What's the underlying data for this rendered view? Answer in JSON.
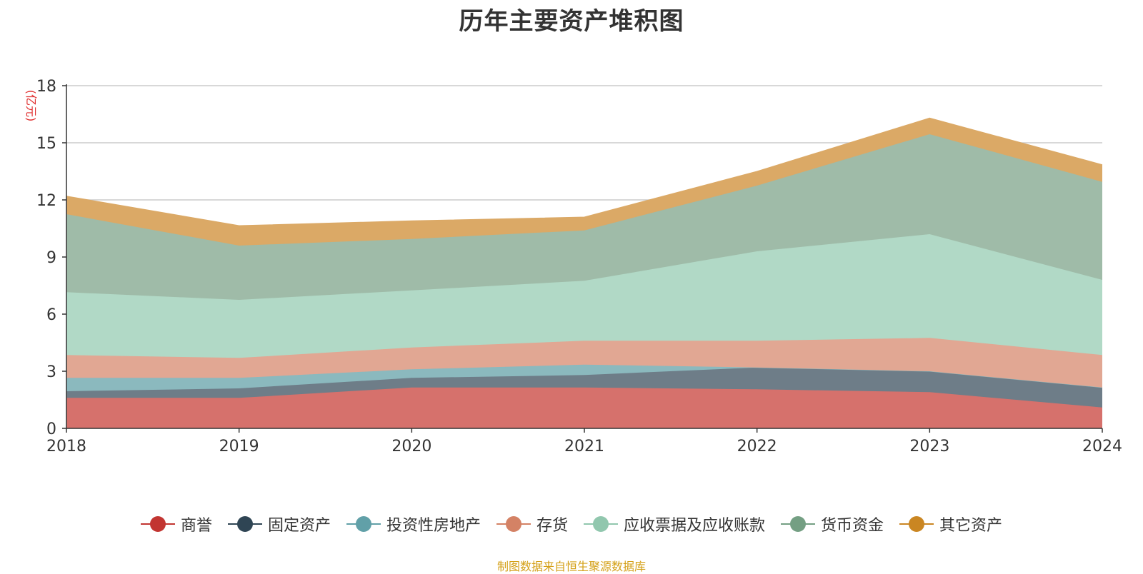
{
  "title": "历年主要资产堆积图",
  "source_note": "制图数据来自恒生聚源数据库",
  "chart_data": {
    "type": "area",
    "stacked": true,
    "title": "历年主要资产堆积图",
    "ylabel": "(亿元)",
    "x": [
      "2018",
      "2019",
      "2020",
      "2021",
      "2022",
      "2023",
      "2024"
    ],
    "ylim": [
      0,
      18
    ],
    "yticks": [
      0,
      3,
      6,
      9,
      12,
      15,
      18
    ],
    "grid": true,
    "legend_position": "bottom",
    "series": [
      {
        "name": "商誉",
        "color": "#c23531",
        "fill": "#d6716c",
        "values": [
          1.6,
          1.6,
          2.15,
          2.15,
          2.05,
          1.9,
          1.1
        ]
      },
      {
        "name": "固定资产",
        "color": "#2f4554",
        "fill": "#6e7d88",
        "values": [
          0.35,
          0.5,
          0.5,
          0.65,
          1.15,
          1.1,
          1.05
        ]
      },
      {
        "name": "投资性房地产",
        "color": "#61a0a8",
        "fill": "#8bb9be",
        "values": [
          0.7,
          0.55,
          0.45,
          0.55,
          0.0,
          0.0,
          0.0
        ]
      },
      {
        "name": "存货",
        "color": "#d48265",
        "fill": "#e1a793",
        "values": [
          1.2,
          1.05,
          1.15,
          1.25,
          1.4,
          1.75,
          1.7
        ]
      },
      {
        "name": "应收票据及应收账款",
        "color": "#91c7ae",
        "fill": "#b1d9c6",
        "values": [
          3.3,
          3.05,
          3.0,
          3.15,
          4.7,
          5.45,
          3.95
        ]
      },
      {
        "name": "货币资金",
        "color": "#749f83",
        "fill": "#9fbba8",
        "values": [
          4.1,
          2.85,
          2.7,
          2.65,
          3.45,
          5.25,
          5.15
        ]
      },
      {
        "name": "其它资产",
        "color": "#ca8622",
        "fill": "#dba966",
        "values": [
          0.95,
          1.05,
          0.95,
          0.7,
          0.75,
          0.85,
          0.9
        ]
      }
    ]
  }
}
